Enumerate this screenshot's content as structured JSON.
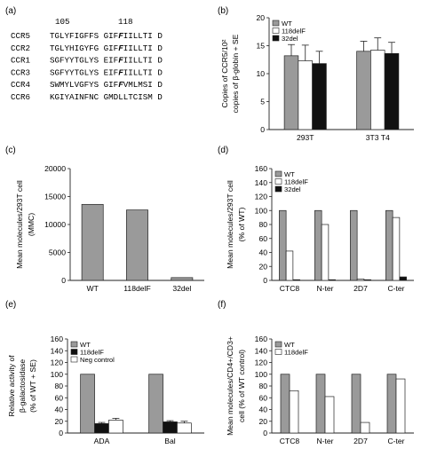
{
  "colors": {
    "gray": "#9a9a9a",
    "white": "#ffffff",
    "black": "#111111",
    "axis": "#222222"
  },
  "panels": [
    {
      "letter": "(a)"
    },
    {
      "letter": "(b)"
    },
    {
      "letter": "(c)"
    },
    {
      "letter": "(d)"
    },
    {
      "letter": "(e)"
    },
    {
      "letter": "(f)"
    }
  ],
  "alignment": {
    "position_labels": [
      "105",
      "118"
    ],
    "rows": [
      {
        "name": "CCR5",
        "pre": "TGLYFIGFFS GIF",
        "bold": "F",
        "post": "IILLTI D"
      },
      {
        "name": "CCR2",
        "pre": "TGLYHIGYFG GIF",
        "bold": "F",
        "post": "IILLTI D"
      },
      {
        "name": "CCR1",
        "pre": "SGFYYTGLYS EIF",
        "bold": "F",
        "post": "IILLTI D"
      },
      {
        "name": "CCR3",
        "pre": "SGFYYTGLYS EIF",
        "bold": "F",
        "post": "IILLTI D"
      },
      {
        "name": "CCR4",
        "pre": "SWMYLVGFYS GIF",
        "bold": "F",
        "post": "VMLMSI D"
      },
      {
        "name": "CCR6",
        "pre": "KGIYAINFNC GMDLLTCISM D",
        "bold": "",
        "post": ""
      }
    ]
  },
  "chart_data": [
    {
      "panel": "(b)",
      "type": "bar",
      "categories": [
        "293T",
        "3T3 T4"
      ],
      "series": [
        {
          "name": "WT",
          "values": [
            13.2,
            14.0
          ],
          "errors": [
            2.0,
            1.8
          ],
          "color": "#9a9a9a"
        },
        {
          "name": "118delF",
          "values": [
            12.3,
            14.2
          ],
          "errors": [
            2.8,
            2.2
          ],
          "color": "#ffffff"
        },
        {
          "name": "32del",
          "values": [
            11.8,
            13.6
          ],
          "errors": [
            2.2,
            2.0
          ],
          "color": "#111111"
        }
      ],
      "ylabel": [
        "Copies of CCR5/10²",
        "copies of β-globin + SE"
      ],
      "ylim": [
        0,
        20
      ],
      "yticks": [
        0,
        5,
        10,
        15,
        20
      ],
      "legend": "top-left"
    },
    {
      "panel": "(c)",
      "type": "bar",
      "categories": [
        "WT",
        "118delF",
        "32del"
      ],
      "series": [
        {
          "values": [
            13600,
            12600,
            500
          ],
          "color": "#9a9a9a"
        }
      ],
      "ylabel": [
        "Mean molecules/293T cell",
        "(MMC)"
      ],
      "ylim": [
        0,
        20000
      ],
      "yticks": [
        0,
        5000,
        10000,
        15000,
        20000
      ]
    },
    {
      "panel": "(d)",
      "type": "bar",
      "categories": [
        "CTC8",
        "N-ter",
        "2D7",
        "C-ter"
      ],
      "series": [
        {
          "name": "WT",
          "values": [
            100,
            100,
            100,
            100
          ],
          "color": "#9a9a9a"
        },
        {
          "name": "118delF",
          "values": [
            42,
            80,
            2,
            90
          ],
          "color": "#ffffff"
        },
        {
          "name": "32del",
          "values": [
            1,
            1,
            1,
            5
          ],
          "color": "#111111"
        }
      ],
      "ylabel": [
        "Mean molecules/293T cell",
        "(% of WT)"
      ],
      "ylim": [
        0,
        160
      ],
      "yticks": [
        0,
        20,
        40,
        60,
        80,
        100,
        120,
        140,
        160
      ],
      "legend": "top-left"
    },
    {
      "panel": "(e)",
      "type": "bar",
      "categories": [
        "ADA",
        "Bal"
      ],
      "series": [
        {
          "name": "WT",
          "values": [
            100,
            100
          ],
          "color": "#9a9a9a"
        },
        {
          "name": "118delF",
          "values": [
            16,
            19
          ],
          "errors": [
            2,
            2
          ],
          "color": "#111111"
        },
        {
          "name": "Neg control",
          "values": [
            22,
            17
          ],
          "errors": [
            3,
            3
          ],
          "color": "#ffffff"
        }
      ],
      "ylabel": [
        "Relative activity of",
        "β-galactosidase",
        "(% of WT + SE)"
      ],
      "ylim": [
        0,
        160
      ],
      "yticks": [
        0,
        20,
        40,
        60,
        80,
        100,
        120,
        140,
        160
      ],
      "legend": "top-left"
    },
    {
      "panel": "(f)",
      "type": "bar",
      "categories": [
        "CTC8",
        "N-ter",
        "2D7",
        "C-ter"
      ],
      "series": [
        {
          "name": "WT",
          "values": [
            100,
            100,
            100,
            100
          ],
          "color": "#9a9a9a"
        },
        {
          "name": "118delF",
          "values": [
            72,
            62,
            18,
            92
          ],
          "color": "#ffffff"
        }
      ],
      "ylabel": [
        "Mean molecules/CD4+/CD3+",
        "cell (% of WT control)"
      ],
      "ylim": [
        0,
        160
      ],
      "yticks": [
        0,
        20,
        40,
        60,
        80,
        100,
        120,
        140,
        160
      ],
      "legend": "top-left"
    }
  ]
}
